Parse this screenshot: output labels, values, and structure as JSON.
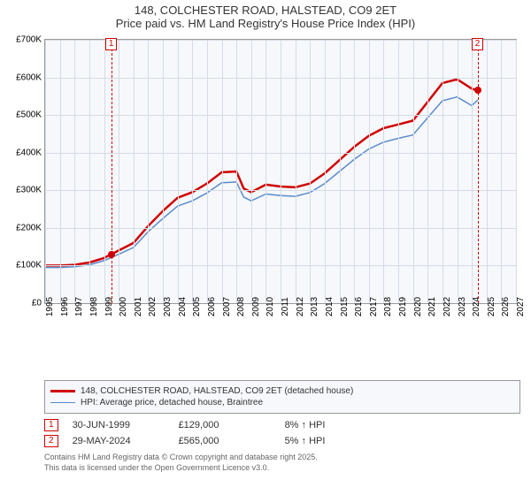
{
  "title": {
    "line1": "148, COLCHESTER ROAD, HALSTEAD, CO9 2ET",
    "line2": "Price paid vs. HM Land Registry's House Price Index (HPI)"
  },
  "chart": {
    "type": "line",
    "background_color": "#f6f8fb",
    "grid_color": "#d5dce6",
    "border_color": "#999999",
    "ylim": [
      0,
      700000
    ],
    "ytick_step": 100000,
    "yticks": [
      "£0",
      "£100K",
      "£200K",
      "£300K",
      "£400K",
      "£500K",
      "£600K",
      "£700K"
    ],
    "xlim": [
      1995,
      2027
    ],
    "xticks": [
      1995,
      1996,
      1997,
      1998,
      1999,
      2000,
      2001,
      2002,
      2003,
      2004,
      2005,
      2006,
      2007,
      2008,
      2009,
      2010,
      2011,
      2012,
      2013,
      2014,
      2015,
      2016,
      2017,
      2018,
      2019,
      2020,
      2021,
      2022,
      2023,
      2024,
      2025,
      2026,
      2027
    ],
    "series": [
      {
        "name": "148, COLCHESTER ROAD, HALSTEAD, CO9 2ET (detached house)",
        "color": "#d00000",
        "width": 2.5,
        "data": [
          [
            1995,
            100000
          ],
          [
            1996,
            100000
          ],
          [
            1997,
            102000
          ],
          [
            1998,
            108000
          ],
          [
            1999,
            120000
          ],
          [
            2000,
            140000
          ],
          [
            2001,
            160000
          ],
          [
            2002,
            205000
          ],
          [
            2003,
            245000
          ],
          [
            2004,
            280000
          ],
          [
            2005,
            295000
          ],
          [
            2006,
            318000
          ],
          [
            2007,
            348000
          ],
          [
            2008,
            350000
          ],
          [
            2008.5,
            305000
          ],
          [
            2009,
            295000
          ],
          [
            2010,
            315000
          ],
          [
            2011,
            310000
          ],
          [
            2012,
            308000
          ],
          [
            2013,
            318000
          ],
          [
            2014,
            345000
          ],
          [
            2015,
            380000
          ],
          [
            2016,
            415000
          ],
          [
            2017,
            445000
          ],
          [
            2018,
            465000
          ],
          [
            2019,
            475000
          ],
          [
            2020,
            485000
          ],
          [
            2021,
            535000
          ],
          [
            2022,
            585000
          ],
          [
            2023,
            595000
          ],
          [
            2024,
            570000
          ],
          [
            2024.4,
            565000
          ]
        ]
      },
      {
        "name": "HPI: Average price, detached house, Braintree",
        "color": "#5a8bc9",
        "width": 1.5,
        "data": [
          [
            1995,
            95000
          ],
          [
            1996,
            95000
          ],
          [
            1997,
            97000
          ],
          [
            1998,
            102000
          ],
          [
            1999,
            113000
          ],
          [
            2000,
            130000
          ],
          [
            2001,
            148000
          ],
          [
            2002,
            190000
          ],
          [
            2003,
            225000
          ],
          [
            2004,
            258000
          ],
          [
            2005,
            272000
          ],
          [
            2006,
            293000
          ],
          [
            2007,
            320000
          ],
          [
            2008,
            322000
          ],
          [
            2008.5,
            282000
          ],
          [
            2009,
            272000
          ],
          [
            2010,
            290000
          ],
          [
            2011,
            286000
          ],
          [
            2012,
            284000
          ],
          [
            2013,
            294000
          ],
          [
            2014,
            318000
          ],
          [
            2015,
            350000
          ],
          [
            2016,
            382000
          ],
          [
            2017,
            410000
          ],
          [
            2018,
            428000
          ],
          [
            2019,
            438000
          ],
          [
            2020,
            447000
          ],
          [
            2021,
            493000
          ],
          [
            2022,
            538000
          ],
          [
            2023,
            548000
          ],
          [
            2024,
            525000
          ],
          [
            2024.4,
            540000
          ]
        ]
      }
    ],
    "markers": [
      {
        "num": "1",
        "x": 1999.5,
        "y": 129000,
        "dot_color": "#d00000"
      },
      {
        "num": "2",
        "x": 2024.4,
        "y": 565000,
        "dot_color": "#d00000"
      }
    ]
  },
  "legend": {
    "items": [
      {
        "color": "#d00000",
        "label": "148, COLCHESTER ROAD, HALSTEAD, CO9 2ET (detached house)",
        "width": 2.5
      },
      {
        "color": "#5a8bc9",
        "label": "HPI: Average price, detached house, Braintree",
        "width": 1.5
      }
    ]
  },
  "transactions": [
    {
      "num": "1",
      "date": "30-JUN-1999",
      "price": "£129,000",
      "delta": "8% ↑ HPI"
    },
    {
      "num": "2",
      "date": "29-MAY-2024",
      "price": "£565,000",
      "delta": "5% ↑ HPI"
    }
  ],
  "footnote": {
    "line1": "Contains HM Land Registry data © Crown copyright and database right 2025.",
    "line2": "This data is licensed under the Open Government Licence v3.0."
  }
}
